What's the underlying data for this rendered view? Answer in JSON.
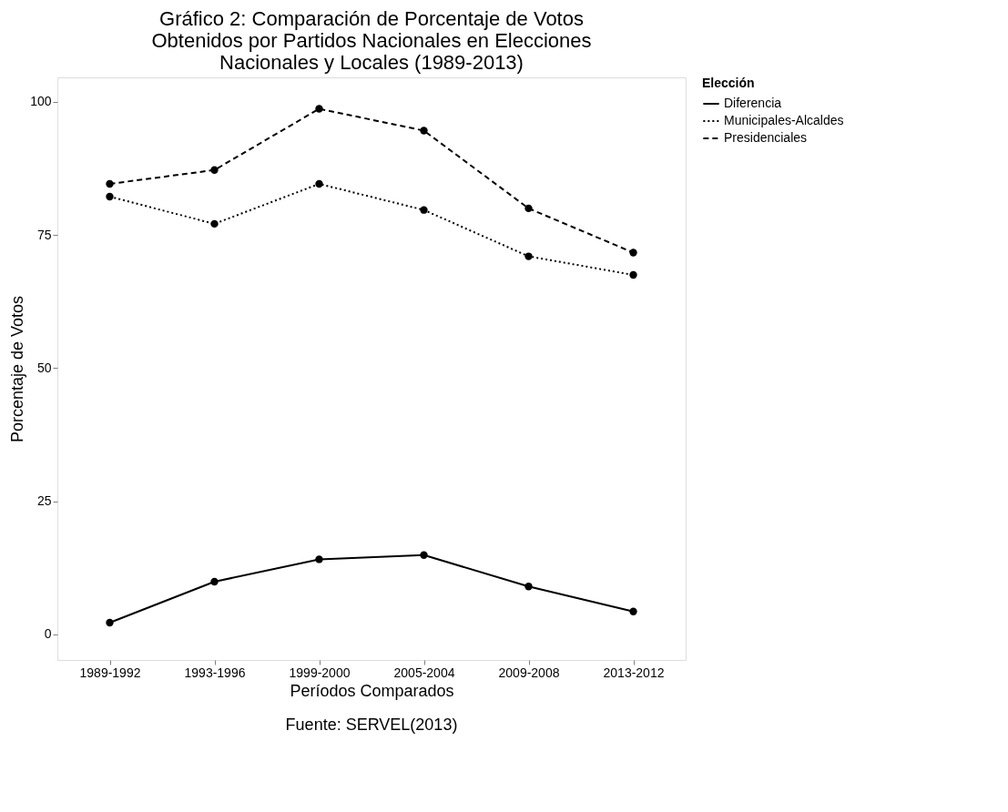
{
  "chart_data": {
    "type": "line",
    "title": [
      "Gráfico 2: Comparación de Porcentaje de Votos",
      "Obtenidos por Partidos Nacionales en Elecciones",
      "Nacionales y Locales (1989-2013)"
    ],
    "xlabel": "Períodos Comparados",
    "ylabel": "Porcentaje de Votos",
    "legend_title": "Elección",
    "annotations": [
      "Fuente: SERVEL(2013)"
    ],
    "categories": [
      "1989-1992",
      "1993-1996",
      "1999-2000",
      "2005-2004",
      "2009-2008",
      "2013-2012"
    ],
    "series": [
      {
        "name": "Diferencia",
        "color": "#000000",
        "line_style": "solid",
        "values": [
          2.2,
          9.9,
          14.1,
          14.9,
          9.0,
          4.3
        ]
      },
      {
        "name": "Municipales-Alcaldes",
        "color": "#000000",
        "line_style": "dotted",
        "values": [
          82.2,
          77.1,
          84.6,
          79.7,
          71.0,
          67.5
        ]
      },
      {
        "name": "Presidenciales",
        "color": "#000000",
        "line_style": "dashed",
        "values": [
          84.6,
          87.2,
          98.7,
          94.6,
          80.0,
          71.7
        ]
      }
    ],
    "ylim": [
      -4.8,
      104.6
    ],
    "yticks": [
      0,
      25,
      50,
      75,
      100
    ],
    "grid": false,
    "legend": "right",
    "marker": "circle"
  }
}
